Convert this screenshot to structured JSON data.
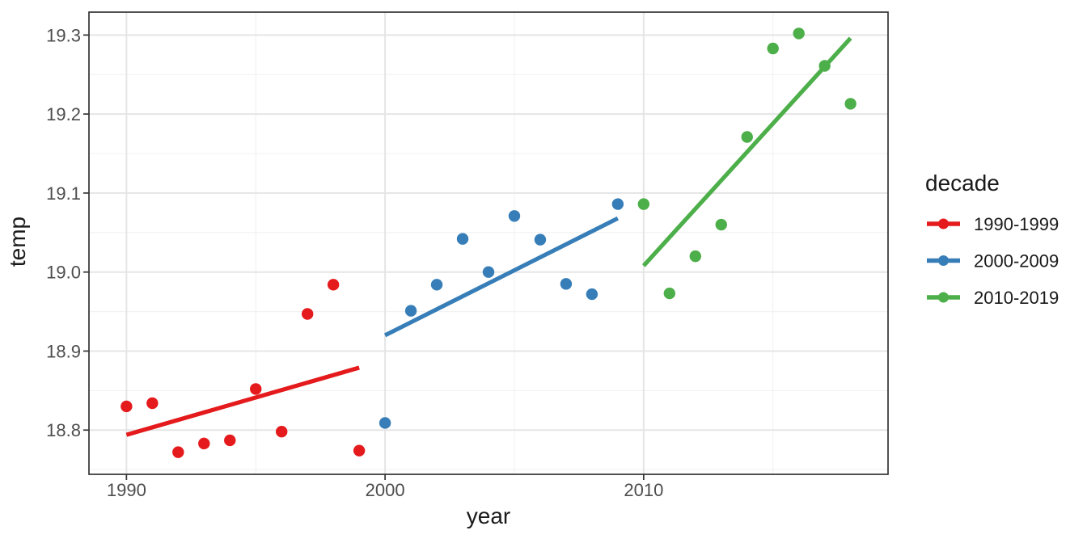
{
  "figure": {
    "background": "#FFFFFF",
    "panel_background": "#FFFFFF",
    "panel_border_color": "#333333",
    "grid_major_color": "#E5E5E5",
    "grid_minor_color": "#F0F0F0",
    "tick_mark_color": "#333333",
    "axis_text_color": "#4D4D4D",
    "axis_title_color": "#1A1A1A"
  },
  "chart_data": {
    "type": "scatter",
    "title": "",
    "xlabel": "year",
    "ylabel": "temp",
    "xlim": [
      1988.55,
      2019.45
    ],
    "ylim": [
      18.744,
      19.329
    ],
    "grid": true,
    "x_ticks": [
      1990,
      2000,
      2010
    ],
    "x_tick_labels": [
      "1990",
      "2000",
      "2010"
    ],
    "x_minor_ticks": [
      1995,
      2005,
      2015
    ],
    "y_ticks": [
      18.8,
      18.9,
      19.0,
      19.1,
      19.2,
      19.3
    ],
    "y_tick_labels": [
      "18.8",
      "18.9",
      "19.0",
      "19.1",
      "19.2",
      "19.3"
    ],
    "y_minor_ticks": [
      18.75,
      18.85,
      18.95,
      19.05,
      19.15,
      19.25
    ],
    "legend": {
      "title": "decade",
      "position": "right",
      "items": [
        {
          "label": "1990-1999",
          "color": "#E41A1C"
        },
        {
          "label": "2000-2009",
          "color": "#377EB8"
        },
        {
          "label": "2010-2019",
          "color": "#4DAF4A"
        }
      ]
    },
    "series": [
      {
        "name": "1990-1999",
        "color": "#E41A1C",
        "x": [
          1990,
          1991,
          1992,
          1993,
          1994,
          1995,
          1996,
          1997,
          1998,
          1999
        ],
        "y": [
          18.83,
          18.834,
          18.772,
          18.783,
          18.787,
          18.852,
          18.798,
          18.947,
          18.984,
          18.774
        ],
        "trend": {
          "x1": 1990,
          "y1": 18.794,
          "x2": 1999,
          "y2": 18.879
        }
      },
      {
        "name": "2000-2009",
        "color": "#377EB8",
        "x": [
          2000,
          2001,
          2002,
          2003,
          2004,
          2005,
          2006,
          2007,
          2008,
          2009
        ],
        "y": [
          18.809,
          18.951,
          18.984,
          19.042,
          19.0,
          19.071,
          19.041,
          18.985,
          18.972,
          19.086
        ],
        "trend": {
          "x1": 2000,
          "y1": 18.92,
          "x2": 2009,
          "y2": 19.068
        }
      },
      {
        "name": "2010-2019",
        "color": "#4DAF4A",
        "x": [
          2010,
          2011,
          2012,
          2013,
          2014,
          2015,
          2016,
          2017,
          2018
        ],
        "y": [
          19.086,
          18.973,
          19.02,
          19.06,
          19.171,
          19.283,
          19.302,
          19.261,
          19.213
        ],
        "trend": {
          "x1": 2010,
          "y1": 19.008,
          "x2": 2018,
          "y2": 19.296
        }
      }
    ]
  }
}
